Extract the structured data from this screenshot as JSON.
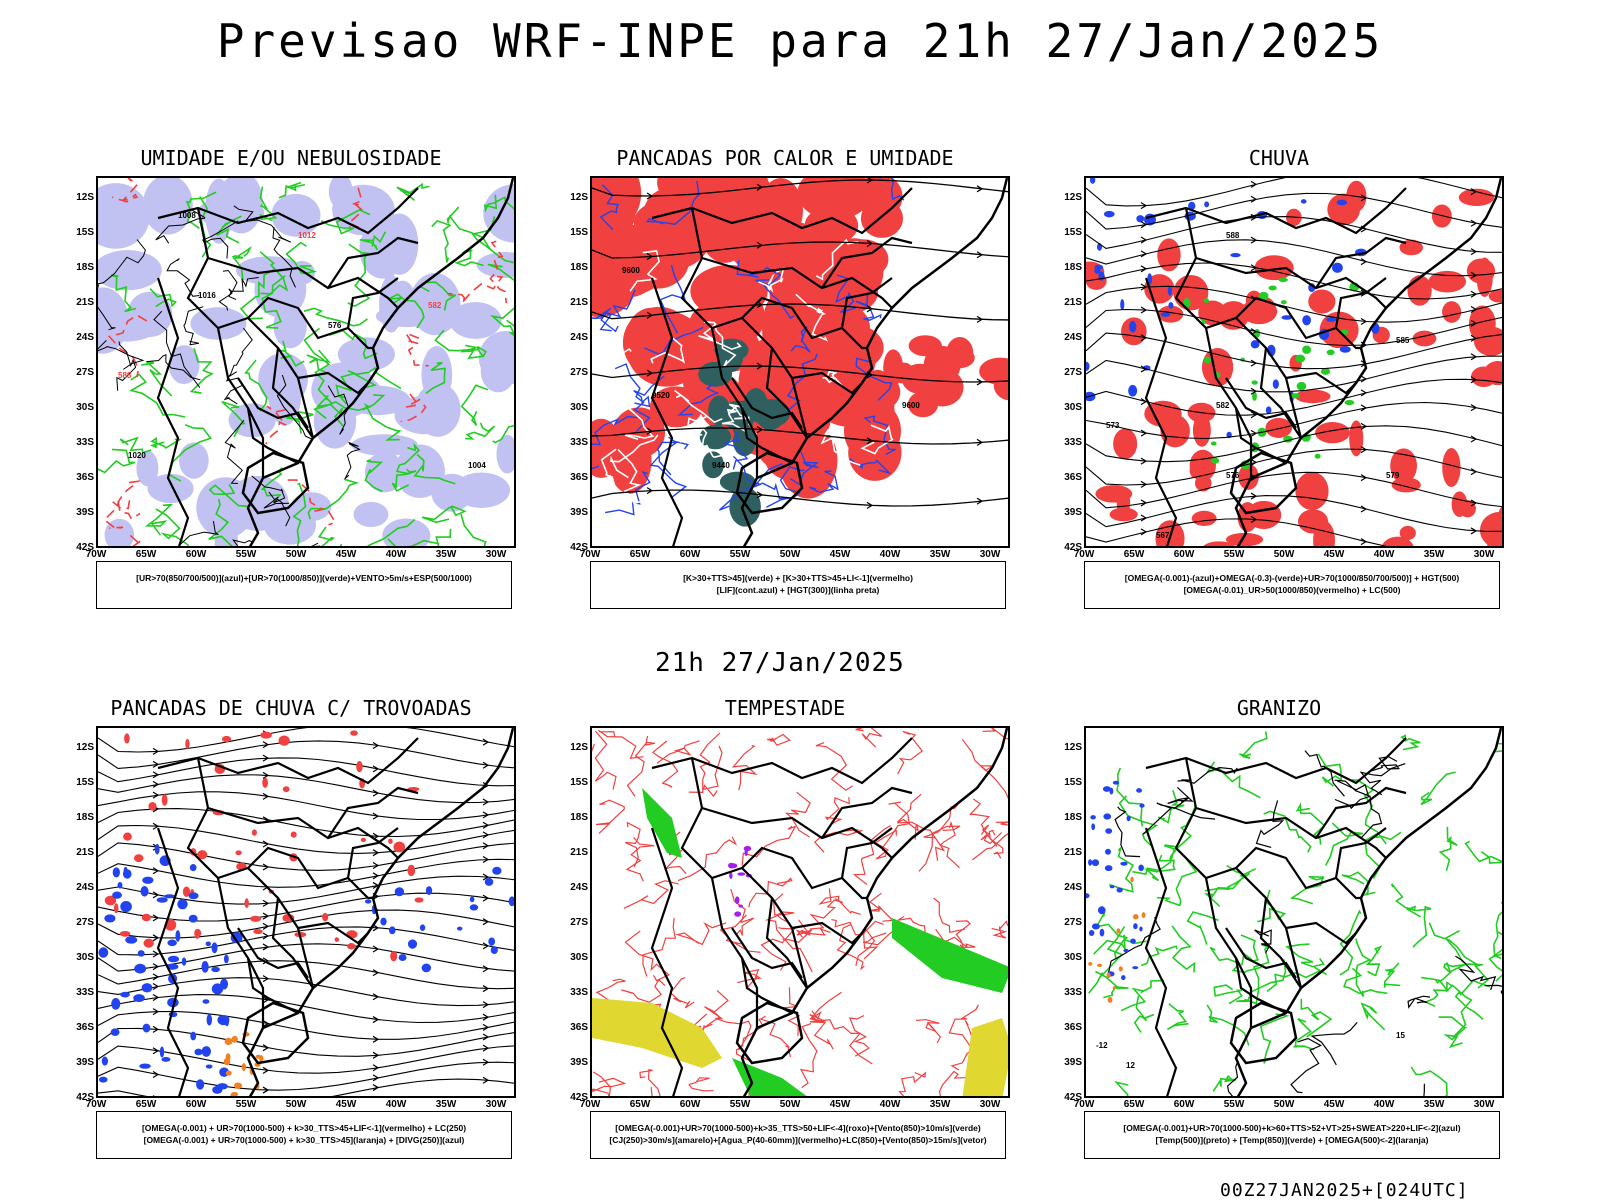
{
  "title": "Previsao WRF-INPE  para 21h 27/Jan/2025",
  "mid_date": "21h 27/Jan/2025",
  "footer": "00Z27JAN2025+[024UTC]",
  "lat_labels": [
    "12S",
    "15S",
    "18S",
    "21S",
    "24S",
    "27S",
    "30S",
    "33S",
    "36S",
    "39S",
    "42S"
  ],
  "lon_labels": [
    "70W",
    "65W",
    "60W",
    "55W",
    "50W",
    "45W",
    "40W",
    "35W",
    "30W"
  ],
  "panels": [
    {
      "title": "UMIDADE E/OU NEBULOSIDADE",
      "legend": [
        "[UR>70(850/700/500)](azul)+[UR>70(1000/850)](verde)+VENTO>5m/s+ESP(500/1000)"
      ],
      "contour_labels": [
        "1008",
        "1012",
        "1016",
        "576",
        "582",
        "1020",
        "1004",
        "588"
      ]
    },
    {
      "title": "PANCADAS POR CALOR E UMIDADE",
      "legend": [
        "[K>30+TTS>45](verde) + [K>30+TTS>45+LI<-1](vermelho)",
        "[LIF](cont.azul) + [HGT(300)](linha preta)"
      ],
      "contour_labels": [
        "9600",
        "9520",
        "9440",
        "9600"
      ]
    },
    {
      "title": "CHUVA",
      "legend": [
        "[OMEGA(-0.001)-(azul)+OMEGA(-0.3)-(verde)+UR>70(1000/850/700/500)] + HGT(500)",
        "[OMEGA(-0.01)_UR>50(1000/850)(vermelho) + LC(500)"
      ],
      "contour_labels": [
        "588",
        "585",
        "582",
        "579",
        "576",
        "573",
        "567"
      ]
    },
    {
      "title": "PANCADAS DE CHUVA C/ TROVOADAS",
      "legend": [
        "[OMEGA(-0.001) + UR>70(1000-500) + k>30_TTS>45+LIF<-1](vermelho) + LC(250)",
        "[OMEGA(-0.001) + UR>70(1000-500) + k>30_TTS>45](laranja) + [DIVG(250)](azul)"
      ],
      "contour_labels": []
    },
    {
      "title": "TEMPESTADE",
      "legend": [
        "[OMEGA(-0.001)+UR>70(1000-500)+k>35_TTS>50+LIF<-4](roxo)+[Vento(850)>10m/s](verde)",
        "[CJ(250)>30m/s](amarelo)+[Agua_P(40-60mm)](vermelho)+LC(850)+[Vento(850)>15m/s](vetor)"
      ],
      "contour_labels": []
    },
    {
      "title": "GRANIZO",
      "legend": [
        "[OMEGA(-0.001)+UR>70(1000-500)+k>60+TTS>52+VT>25+SWEAT>220+LIF<-2](azul)",
        "[Temp(500)](preto) + [Temp(850)](verde) + [OMEGA(500)<-2](laranja)"
      ],
      "contour_labels": [
        "-12",
        "12",
        "15"
      ]
    }
  ],
  "colors": {
    "red": "#f04040",
    "green": "#22cc22",
    "blue": "#2244ee",
    "lilac": "#b4b4f0",
    "teal": "#2f5f5f",
    "yellow": "#e0d830",
    "orange": "#f08020",
    "purple": "#a020f0"
  }
}
